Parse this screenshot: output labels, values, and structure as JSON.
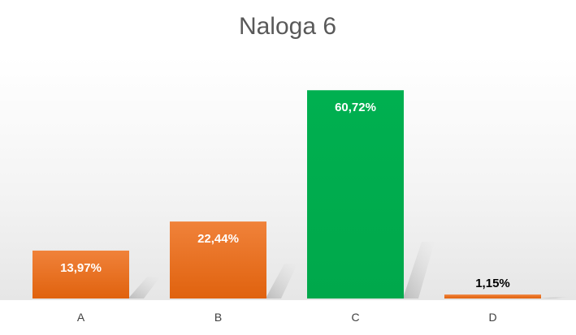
{
  "chart_data": {
    "type": "bar",
    "title": "Naloga 6",
    "categories": [
      "A",
      "B",
      "C",
      "D"
    ],
    "values": [
      13.97,
      22.44,
      60.72,
      1.15
    ],
    "value_labels": [
      "13,97%",
      "22,44%",
      "60,72%",
      "1,15%"
    ],
    "value_label_colors": [
      "#ffffff",
      "#ffffff",
      "#ffffff",
      "#000000"
    ],
    "colors": [
      "#ED7D31",
      "#ED7D31",
      "#00B050",
      "#ED7D31"
    ],
    "ylim": [
      0,
      70
    ],
    "xlabel": "",
    "ylabel": "",
    "grid": false,
    "legend": "none"
  }
}
